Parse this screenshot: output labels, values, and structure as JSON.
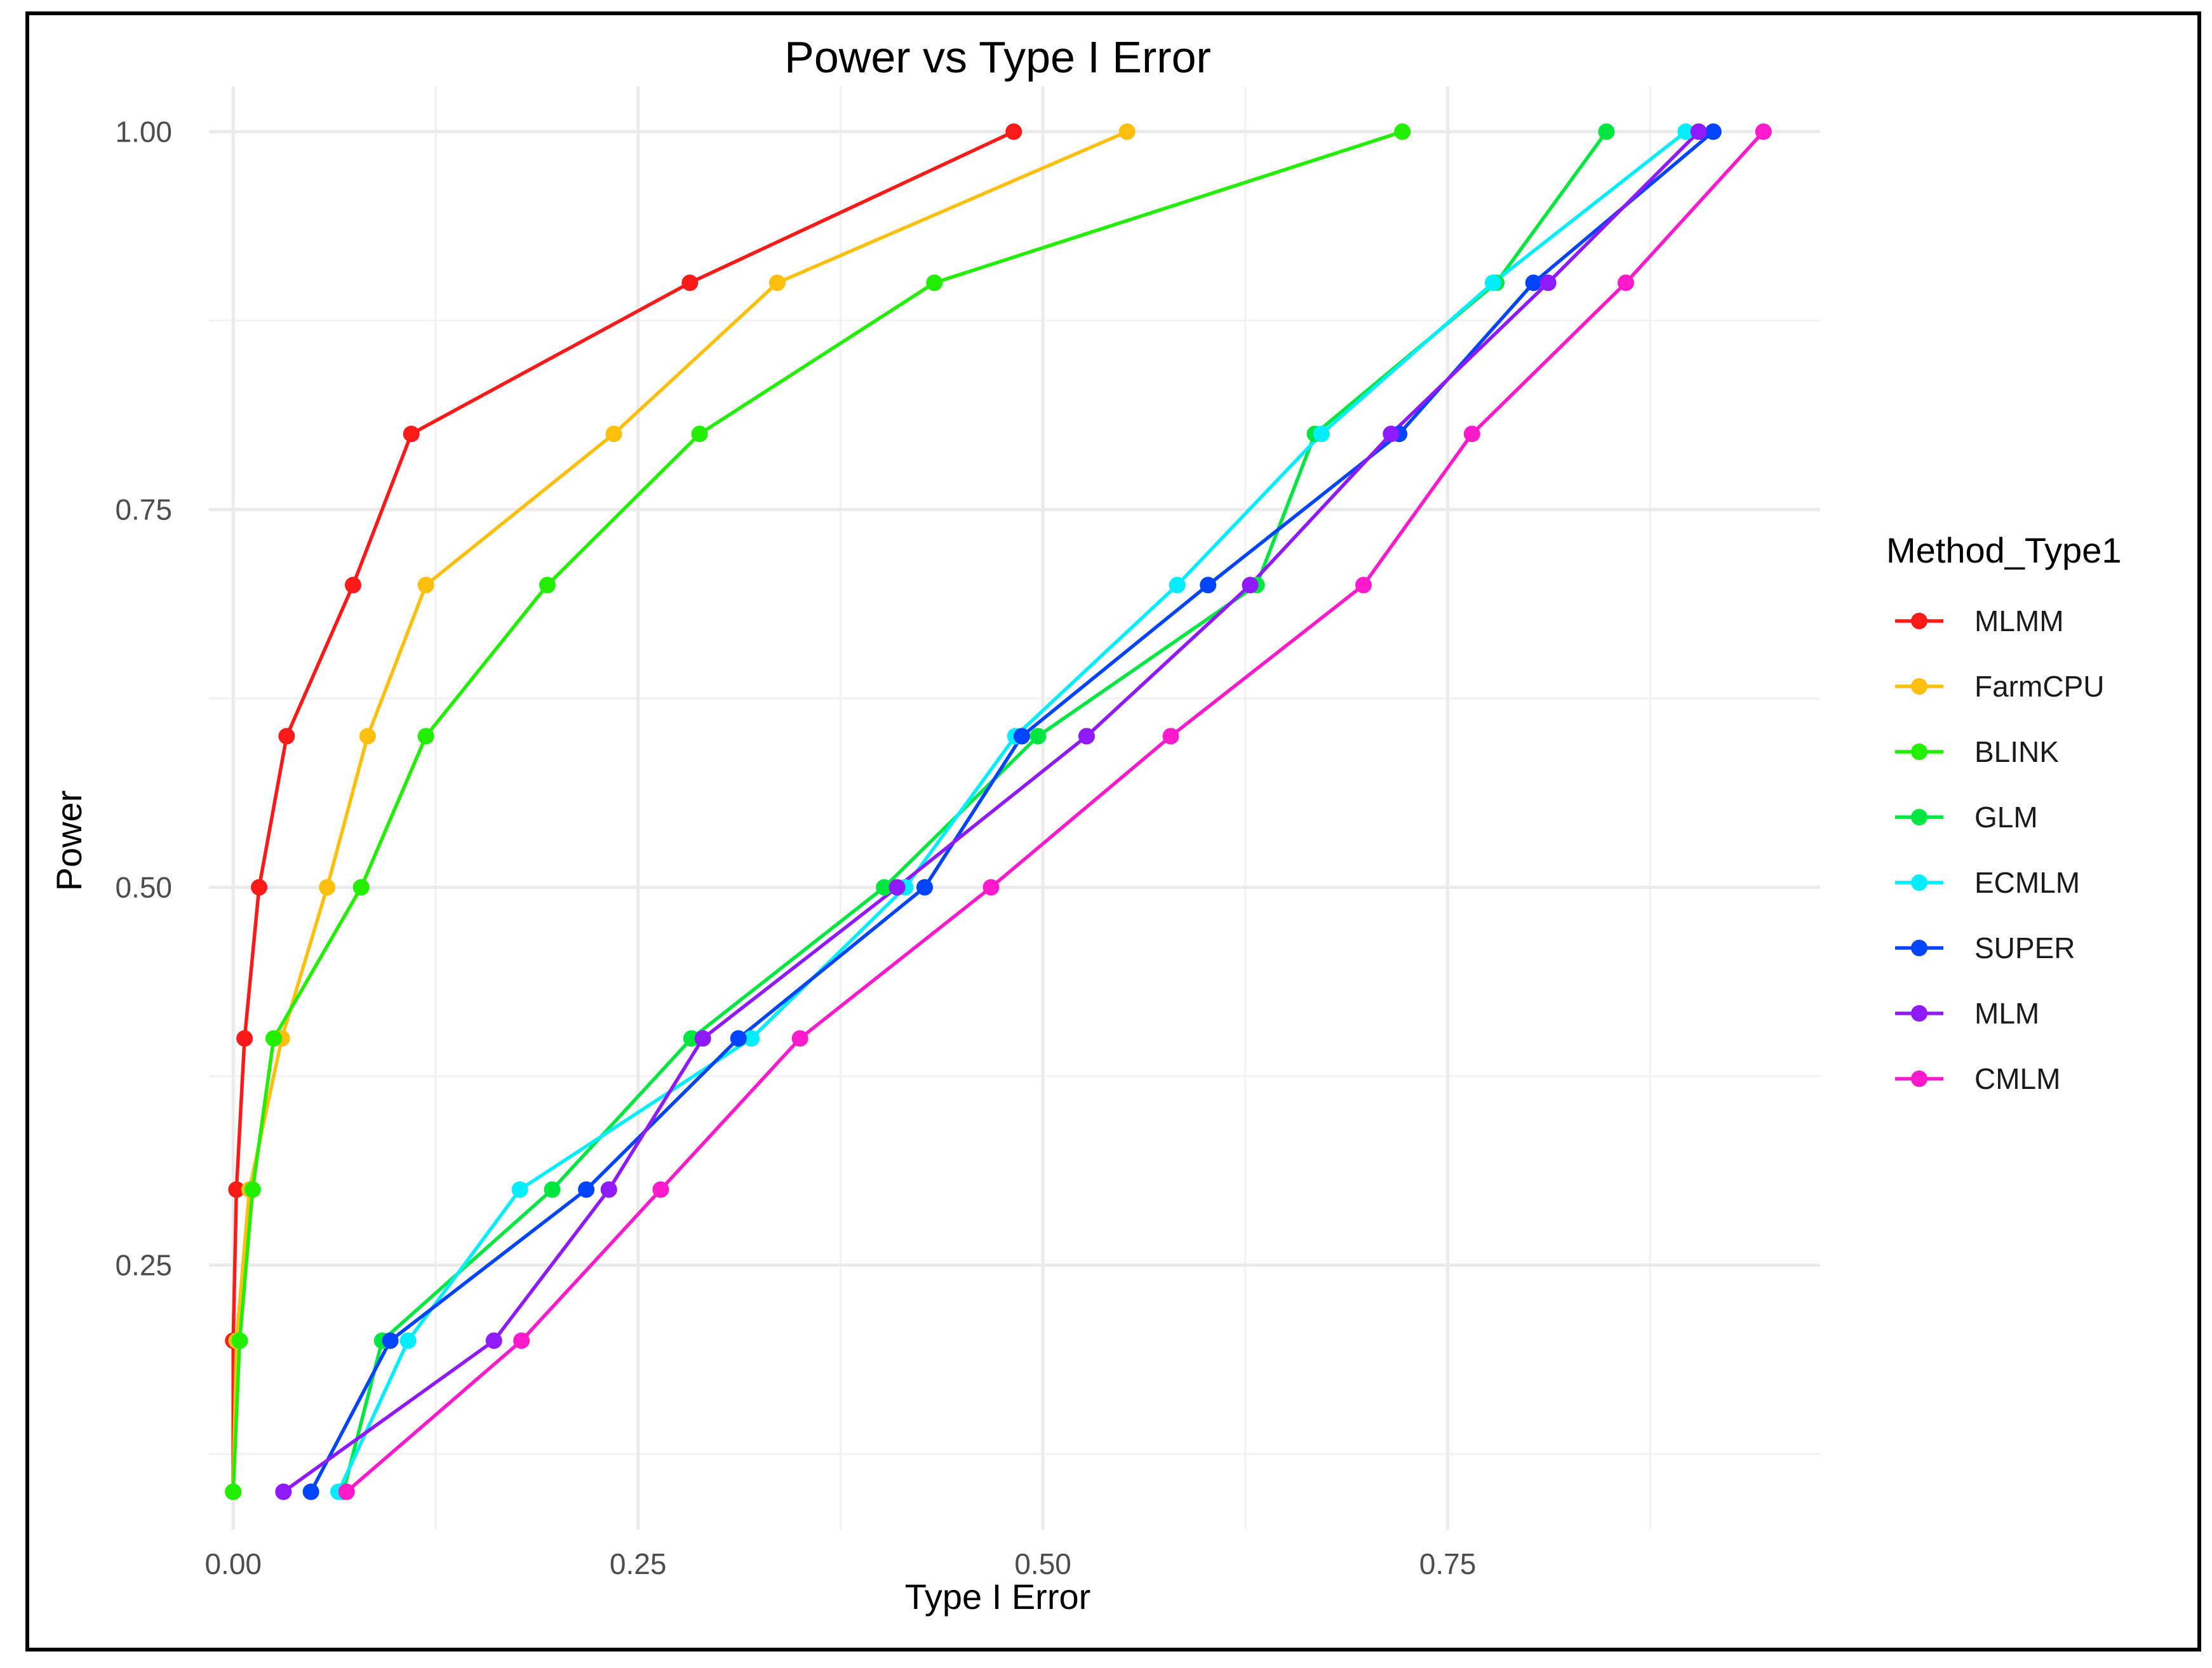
{
  "chart_data": {
    "type": "line",
    "title": "Power vs Type I Error",
    "xlabel": "Type I Error",
    "ylabel": "Power",
    "xlim": [
      -0.015,
      0.98
    ],
    "ylim": [
      0.075,
      1.03
    ],
    "xticks": [
      0.0,
      0.25,
      0.5,
      0.75
    ],
    "xtick_labels": [
      "0.00",
      "0.25",
      "0.50",
      "0.75"
    ],
    "yticks": [
      0.25,
      0.5,
      0.75,
      1.0
    ],
    "ytick_labels": [
      "0.25",
      "0.50",
      "0.75",
      "1.00"
    ],
    "grid": true,
    "legend_title": "Method_Type1",
    "legend_position": "right",
    "series": [
      {
        "name": "MLMM",
        "color": "#ff1a1a",
        "x": [
          0.0,
          0.0,
          0.002,
          0.007,
          0.016,
          0.033,
          0.074,
          0.11,
          0.282,
          0.482
        ],
        "y": [
          0.1,
          0.2,
          0.3,
          0.4,
          0.5,
          0.6,
          0.7,
          0.8,
          0.9,
          1.0
        ]
      },
      {
        "name": "FarmCPU",
        "color": "#ffbf0f",
        "x": [
          0.0,
          0.002,
          0.01,
          0.03,
          0.058,
          0.083,
          0.119,
          0.235,
          0.336,
          0.552
        ],
        "y": [
          0.1,
          0.2,
          0.3,
          0.4,
          0.5,
          0.6,
          0.7,
          0.8,
          0.9,
          1.0
        ]
      },
      {
        "name": "BLINK",
        "color": "#22ee00",
        "x": [
          0.0,
          0.004,
          0.012,
          0.025,
          0.079,
          0.119,
          0.194,
          0.288,
          0.433,
          0.722
        ],
        "y": [
          0.1,
          0.2,
          0.3,
          0.4,
          0.5,
          0.6,
          0.7,
          0.8,
          0.9,
          1.0
        ]
      },
      {
        "name": "GLM",
        "color": "#00e640",
        "x": [
          0.068,
          0.092,
          0.197,
          0.283,
          0.402,
          0.497,
          0.632,
          0.668,
          0.78,
          0.848
        ],
        "y": [
          0.1,
          0.2,
          0.3,
          0.4,
          0.5,
          0.6,
          0.7,
          0.8,
          0.9,
          1.0
        ]
      },
      {
        "name": "ECMLM",
        "color": "#00eeff",
        "x": [
          0.065,
          0.108,
          0.177,
          0.32,
          0.415,
          0.483,
          0.583,
          0.672,
          0.778,
          0.897
        ],
        "y": [
          0.1,
          0.2,
          0.3,
          0.4,
          0.5,
          0.6,
          0.7,
          0.8,
          0.9,
          1.0
        ]
      },
      {
        "name": "SUPER",
        "color": "#0044ff",
        "x": [
          0.048,
          0.097,
          0.218,
          0.312,
          0.427,
          0.487,
          0.602,
          0.72,
          0.803,
          0.914
        ],
        "y": [
          0.1,
          0.2,
          0.3,
          0.4,
          0.5,
          0.6,
          0.7,
          0.8,
          0.9,
          1.0
        ]
      },
      {
        "name": "MLM",
        "color": "#8f1aff",
        "x": [
          0.031,
          0.161,
          0.232,
          0.29,
          0.41,
          0.527,
          0.628,
          0.715,
          0.812,
          0.905
        ],
        "y": [
          0.1,
          0.2,
          0.3,
          0.4,
          0.5,
          0.6,
          0.7,
          0.8,
          0.9,
          1.0
        ]
      },
      {
        "name": "CMLM",
        "color": "#ff1acc",
        "x": [
          0.07,
          0.178,
          0.264,
          0.35,
          0.468,
          0.579,
          0.698,
          0.765,
          0.86,
          0.945
        ],
        "y": [
          0.1,
          0.2,
          0.3,
          0.4,
          0.5,
          0.6,
          0.7,
          0.8,
          0.9,
          1.0
        ]
      }
    ]
  }
}
